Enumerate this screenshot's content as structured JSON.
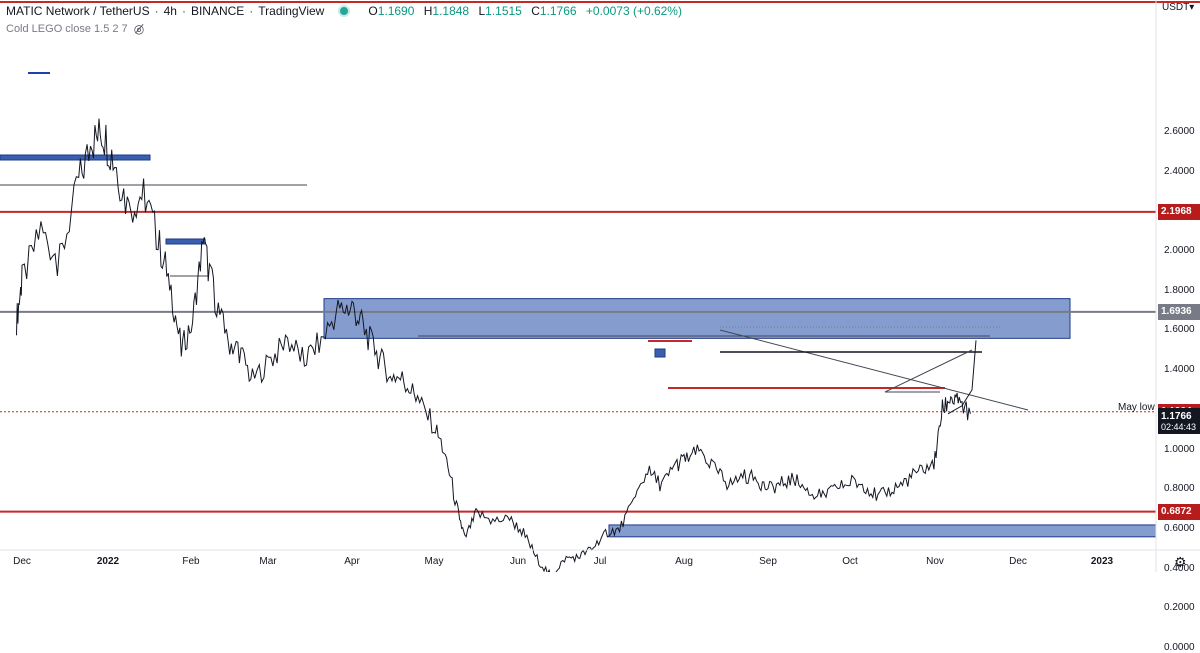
{
  "legend": {
    "symbol": "MATIC Network / TetherUS",
    "interval": "4h",
    "exchange": "BINANCE",
    "source": "TradingView",
    "open_key": "O",
    "open": "1.1690",
    "high_key": "H",
    "high": "1.1848",
    "low_key": "L",
    "low": "1.1515",
    "close_key": "C",
    "close": "1.1766",
    "change": "+0.0073 (+0.62%)"
  },
  "indicator": {
    "label": "Cold LEGO close 1.5 2 7",
    "eye_icon": "eye-crossed-icon"
  },
  "axis": {
    "currency": "USDT▾",
    "y_ticks": [
      "2.6000",
      "2.4000",
      "2.2000",
      "2.0000",
      "1.8000",
      "1.6000",
      "1.4000",
      "1.2000",
      "1.0000",
      "0.8000",
      "0.6000",
      "0.4000",
      "0.2000",
      "0.0000"
    ],
    "x_ticks": [
      {
        "label": "Dec",
        "bold": false
      },
      {
        "label": "2022",
        "bold": true
      },
      {
        "label": "Feb",
        "bold": false
      },
      {
        "label": "Mar",
        "bold": false
      },
      {
        "label": "Apr",
        "bold": false
      },
      {
        "label": "May",
        "bold": false
      },
      {
        "label": "Jun",
        "bold": false
      },
      {
        "label": "Jul",
        "bold": false
      },
      {
        "label": "Aug",
        "bold": false
      },
      {
        "label": "Sep",
        "bold": false
      },
      {
        "label": "Oct",
        "bold": false
      },
      {
        "label": "Nov",
        "bold": false
      },
      {
        "label": "Dec",
        "bold": false
      },
      {
        "label": "2023",
        "bold": true
      }
    ],
    "settings_icon": "gear-icon"
  },
  "price_labels": [
    {
      "value": "2.1968",
      "color": "#b71c1c"
    },
    {
      "value": "1.6936",
      "color": "#787b86"
    },
    {
      "value": "1.1904",
      "color": "#b71c1c"
    },
    {
      "value": "1.1766",
      "color": "#131722",
      "countdown": "02:44:43"
    },
    {
      "value": "0.6872",
      "color": "#b71c1c"
    }
  ],
  "annotations": {
    "may_low": "May low"
  },
  "chart_data": {
    "type": "line",
    "title": "",
    "ylim": [
      0,
      2.7
    ],
    "grid": false,
    "horizontal_levels": [
      {
        "value": 2.1968,
        "color": "#c62828"
      },
      {
        "value": 1.6936,
        "color": "#787b86"
      },
      {
        "value": 1.1904,
        "color": "#c62828",
        "style": "dotted"
      },
      {
        "value": 0.6872,
        "color": "#c62828"
      }
    ],
    "zones": [
      {
        "from": "Mar 22",
        "to": "Dec 20",
        "low": 1.56,
        "high": 1.76,
        "color": "#3a5fb0"
      },
      {
        "from": "Jul 01",
        "to": "Jan 10",
        "low": 0.56,
        "high": 0.62,
        "color": "#3a5fb0"
      }
    ],
    "series": [
      {
        "x": [
          "Nov 25",
          "Dec 01",
          "Dec 08",
          "Dec 15",
          "Dec 22",
          "Dec 27",
          "Jan 01",
          "Jan 05",
          "Jan 10",
          "Jan 15",
          "Jan 20",
          "Jan 24",
          "Jan 28",
          "Feb 02",
          "Feb 06",
          "Feb 10",
          "Feb 15",
          "Feb 20",
          "Feb 25",
          "Mar 02",
          "Mar 08",
          "Mar 14",
          "Mar 20",
          "Mar 26",
          "Apr 01",
          "Apr 05",
          "Apr 10",
          "Apr 15",
          "Apr 20",
          "Apr 25",
          "May 01",
          "May 05",
          "May 09",
          "May 12",
          "May 16",
          "May 22",
          "May 28",
          "Jun 03",
          "Jun 08",
          "Jun 13",
          "Jun 18",
          "Jun 23",
          "Jun 28",
          "Jul 03",
          "Jul 08",
          "Jul 13",
          "Jul 18",
          "Jul 23",
          "Jul 28",
          "Aug 02",
          "Aug 07",
          "Aug 12",
          "Aug 17",
          "Aug 22",
          "Aug 27",
          "Sep 01",
          "Sep 06",
          "Sep 11",
          "Sep 16",
          "Sep 21",
          "Sep 26",
          "Oct 01",
          "Oct 06",
          "Oct 11",
          "Oct 16",
          "Oct 21",
          "Oct 26",
          "Nov 01",
          "Nov 04",
          "Nov 07",
          "Nov 10",
          "Nov 14"
        ],
        "values": [
          1.65,
          1.85,
          2.1,
          1.95,
          2.35,
          2.55,
          2.6,
          2.45,
          2.2,
          2.3,
          2.05,
          1.85,
          1.5,
          1.65,
          2.05,
          1.8,
          1.55,
          1.5,
          1.35,
          1.45,
          1.55,
          1.45,
          1.55,
          1.7,
          1.72,
          1.62,
          1.48,
          1.38,
          1.35,
          1.25,
          1.12,
          0.98,
          0.72,
          0.55,
          0.68,
          0.64,
          0.65,
          0.58,
          0.45,
          0.36,
          0.45,
          0.46,
          0.5,
          0.58,
          0.6,
          0.74,
          0.89,
          0.82,
          0.92,
          0.96,
          0.99,
          0.9,
          0.82,
          0.87,
          0.85,
          0.8,
          0.83,
          0.85,
          0.78,
          0.77,
          0.8,
          0.84,
          0.82,
          0.76,
          0.8,
          0.84,
          0.9,
          0.92,
          1.2,
          1.26,
          1.22,
          1.18
        ]
      }
    ],
    "projection": {
      "values": [
        1.18,
        1.22,
        1.3,
        1.55
      ]
    }
  }
}
